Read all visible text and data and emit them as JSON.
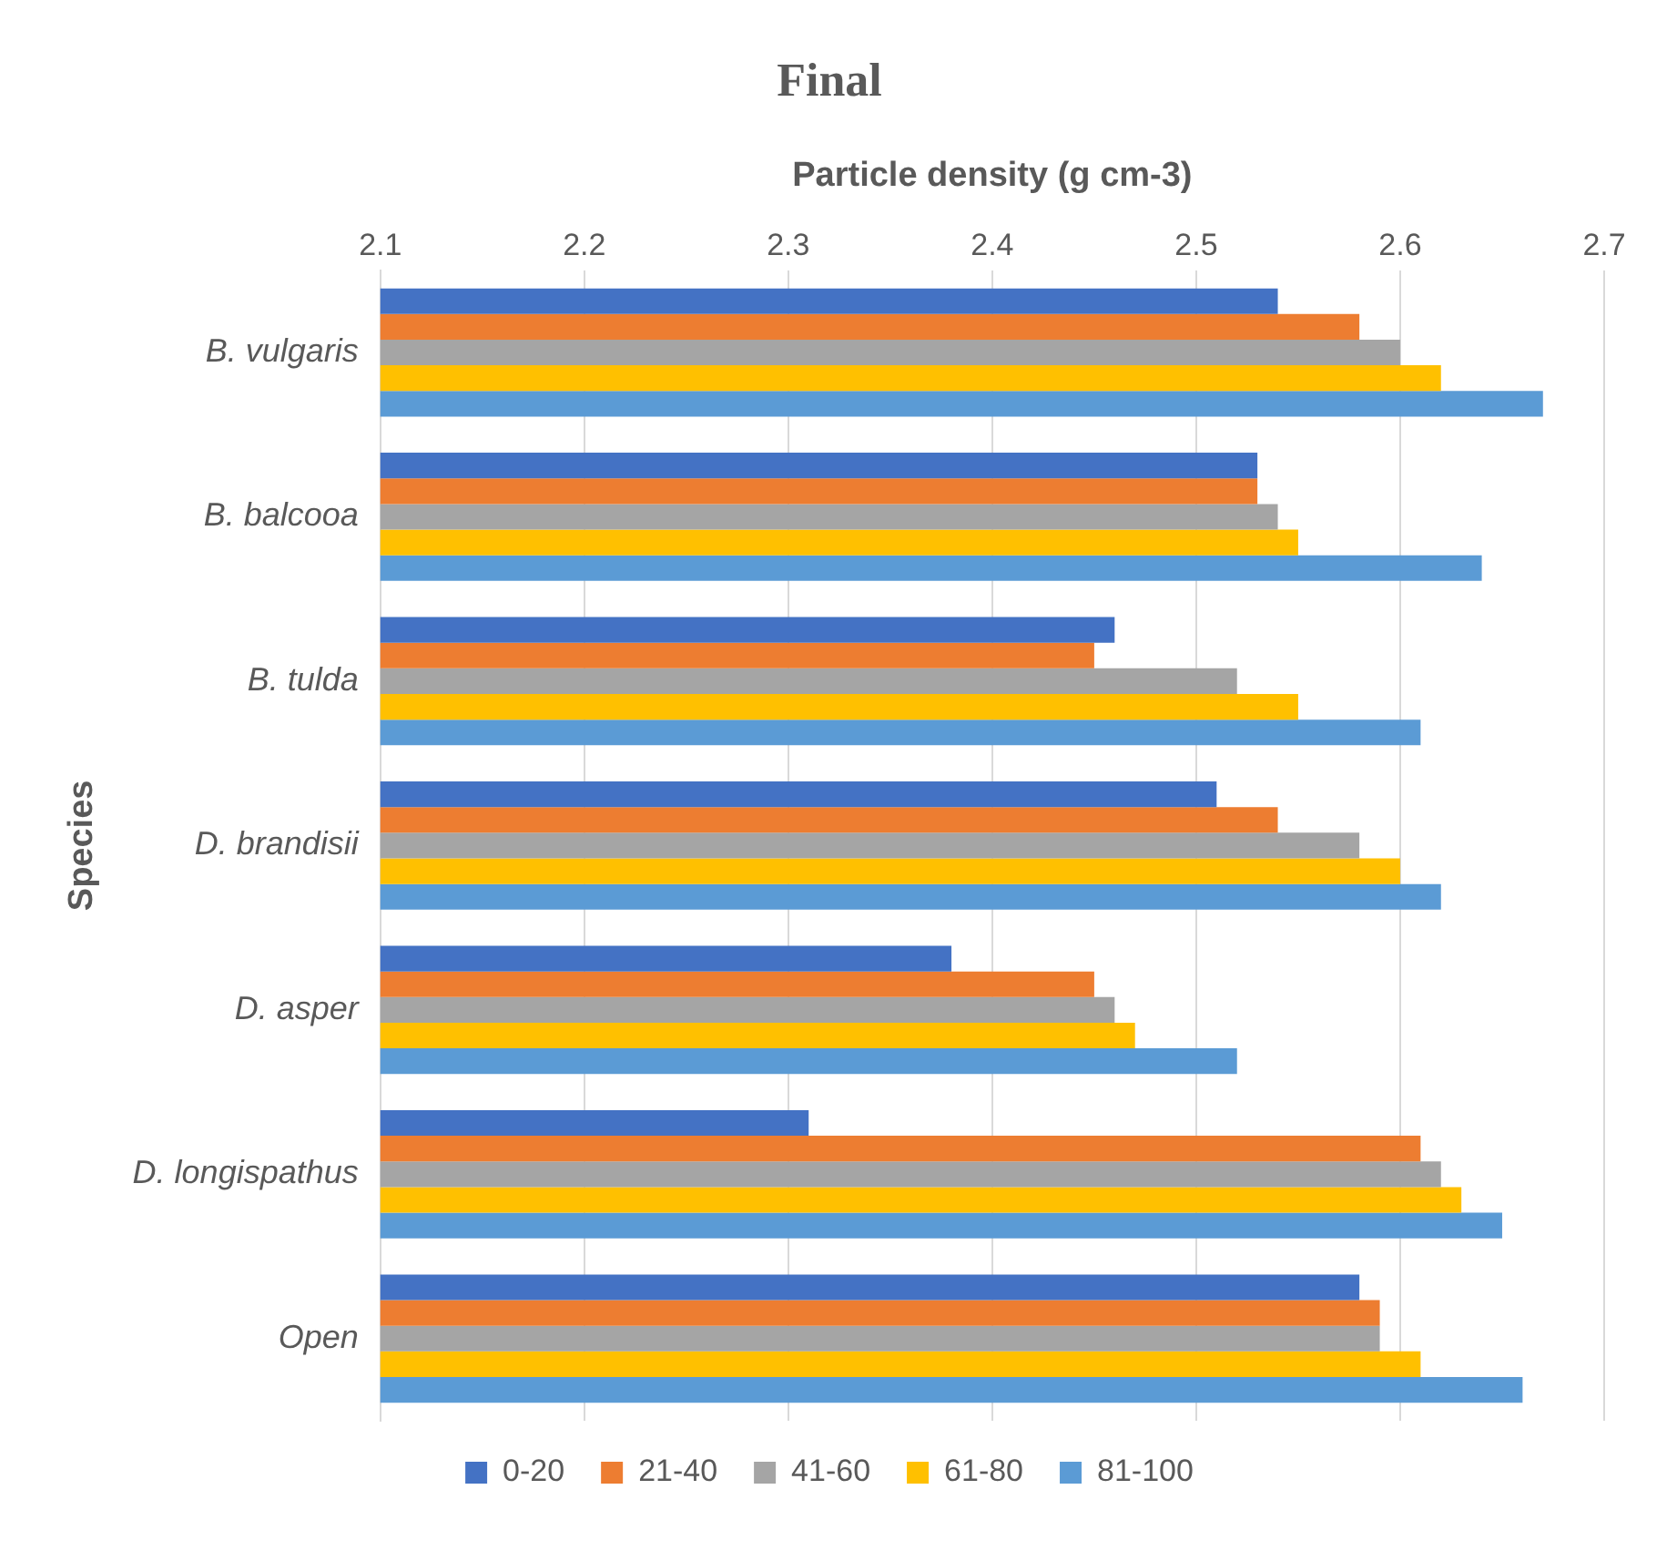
{
  "chart_data": {
    "type": "bar",
    "orientation": "horizontal",
    "title": "Final",
    "xlabel": "Particle density (g cm-3)",
    "ylabel": "Species",
    "categories": [
      "B. vulgaris",
      "B. balcooa",
      "B. tulda",
      "D. brandisii",
      "D. asper",
      "D. longispathus",
      "Open"
    ],
    "series": [
      {
        "name": "0-20",
        "color": "#4472c4",
        "values": [
          2.54,
          2.53,
          2.46,
          2.51,
          2.38,
          2.31,
          2.58
        ]
      },
      {
        "name": "21-40",
        "color": "#ed7d31",
        "values": [
          2.58,
          2.53,
          2.45,
          2.54,
          2.45,
          2.61,
          2.59
        ]
      },
      {
        "name": "41-60",
        "color": "#a5a5a5",
        "values": [
          2.6,
          2.54,
          2.52,
          2.58,
          2.46,
          2.62,
          2.59
        ]
      },
      {
        "name": "61-80",
        "color": "#ffc000",
        "values": [
          2.62,
          2.55,
          2.55,
          2.6,
          2.47,
          2.63,
          2.61
        ]
      },
      {
        "name": "81-100",
        "color": "#5b9bd5",
        "values": [
          2.67,
          2.64,
          2.61,
          2.62,
          2.52,
          2.65,
          2.66
        ]
      }
    ],
    "xlim": [
      2.1,
      2.7
    ],
    "xticks": [
      2.1,
      2.2,
      2.3,
      2.4,
      2.5,
      2.6,
      2.7
    ],
    "grid": "x",
    "legend": "bottom"
  }
}
